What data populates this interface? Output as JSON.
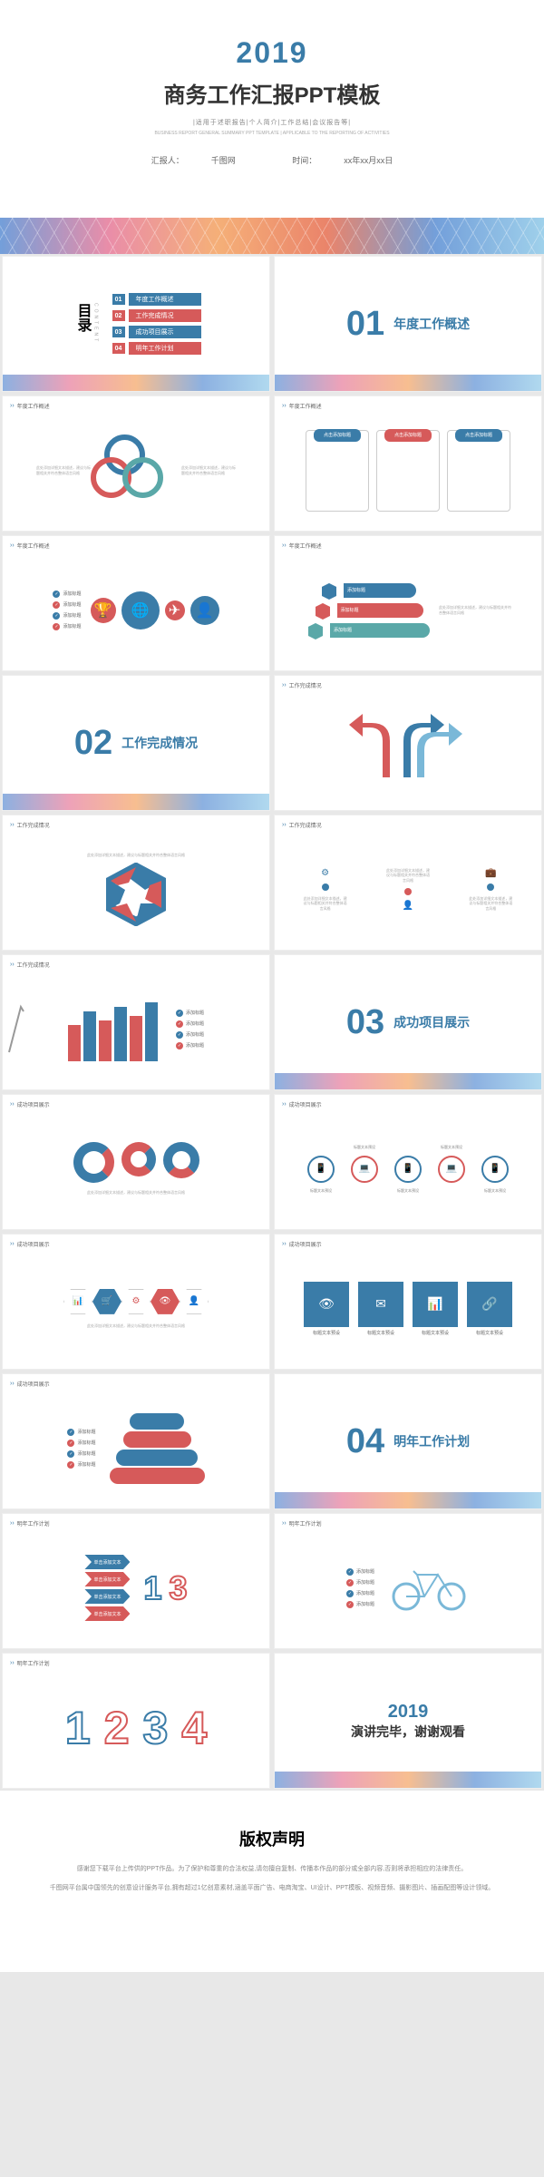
{
  "colors": {
    "blue": "#3a7ca8",
    "red": "#d65a5a",
    "teal": "#5aa8a8",
    "grey": "#888",
    "lightblue": "#7ab8d8"
  },
  "cover": {
    "year": "2019",
    "title": "商务工作汇报PPT模板",
    "subtitle": "|适用于述职报告|个人简介|工作总结|会议报告等|",
    "subtitle2": "BUSINESS REPORT GENERAL SUMMARY PPT TEMPLATE | APPLICABLE TO THE REPORTING OF ACTIVITIES",
    "presenter_label": "汇报人：",
    "presenter": "千图网",
    "date_label": "时间：",
    "date": "xx年xx月xx日"
  },
  "toc": {
    "head": "目录",
    "head_en": "CONTENT",
    "items": [
      {
        "n": "01",
        "t": "年度工作概述",
        "c": "#3a7ca8"
      },
      {
        "n": "02",
        "t": "工作完成情况",
        "c": "#d65a5a"
      },
      {
        "n": "03",
        "t": "成功项目展示",
        "c": "#3a7ca8"
      },
      {
        "n": "04",
        "t": "明年工作计划",
        "c": "#d65a5a"
      }
    ]
  },
  "sections": [
    {
      "n": "01",
      "label": "年度工作概述",
      "c": "#3a7ca8"
    },
    {
      "n": "02",
      "label": "工作完成情况",
      "c": "#3a7ca8"
    },
    {
      "n": "03",
      "label": "成功项目展示",
      "c": "#3a7ca8"
    },
    {
      "n": "04",
      "label": "明年工作计划",
      "c": "#3a7ca8"
    }
  ],
  "slide_head": "年度工作概述",
  "slide_head2": "工作完成情况",
  "slide_head3": "成功项目展示",
  "slide_head4": "明年工作计划",
  "box_labels": [
    "点击添加标题",
    "点击添加标题",
    "点击添加标题"
  ],
  "box_colors": [
    "#3a7ca8",
    "#d65a5a",
    "#3a7ca8"
  ],
  "check_items": [
    "添加标题",
    "添加标题",
    "添加标题",
    "添加标题"
  ],
  "cube_labels": [
    "添加标题",
    "添加标题",
    "添加标题"
  ],
  "cube_colors": [
    "#3a7ca8",
    "#d65a5a",
    "#5aa8a8"
  ],
  "bar_data": {
    "values": [
      40,
      55,
      45,
      60,
      50,
      65
    ],
    "colors": [
      "#d65a5a",
      "#3a7ca8",
      "#d65a5a",
      "#3a7ca8",
      "#d65a5a",
      "#3a7ca8"
    ]
  },
  "hex_colors": [
    "#3a7ca8",
    "#d65a5a",
    "#3a7ca8",
    "#d65a5a",
    "#3a7ca8",
    "#d65a5a"
  ],
  "big_icons": [
    "👁",
    "✉",
    "📊",
    "🔗"
  ],
  "big_icon_labels": [
    "标题文本预设",
    "标题文本预设",
    "标题文本预设",
    "标题文本预设"
  ],
  "stack_colors": [
    "#3a7ca8",
    "#d65a5a",
    "#3a7ca8",
    "#d65a5a"
  ],
  "stack_widths": [
    60,
    75,
    90,
    105
  ],
  "chev_items": [
    "单击添加文本",
    "单击添加文本",
    "单击添加文本",
    "单击添加文本"
  ],
  "chev_colors": [
    "#3a7ca8",
    "#d65a5a",
    "#3a7ca8",
    "#d65a5a"
  ],
  "big_nums": [
    "1",
    "2",
    "3",
    "4"
  ],
  "big_num_colors": [
    "#3a7ca8",
    "#d65a5a",
    "#3a7ca8",
    "#d65a5a"
  ],
  "circ_nodes": [
    "📱",
    "💻",
    "📱",
    "💻",
    "📱"
  ],
  "circ_label": "标题文本预设",
  "close": {
    "year": "2019",
    "text": "演讲完毕，谢谢观看"
  },
  "copyright": {
    "title": "版权声明",
    "line1": "感谢您下载平台上传供的PPT作品。为了保护和尊重的合法权益,请勿擅自复制、传播本作品的部分或全部内容,否则将承担相应的法律责任。",
    "line2": "千图网平台属中国领先的创意设计服务平台,拥有超过1亿创意素材,涵盖平面广告、电商淘宝、UI设计、PPT模板、视频音频、摄影图片、插画配图等设计领域。"
  },
  "placeholder": "此处添加详细文本描述，建议与标题相关并符合整体语言风格"
}
